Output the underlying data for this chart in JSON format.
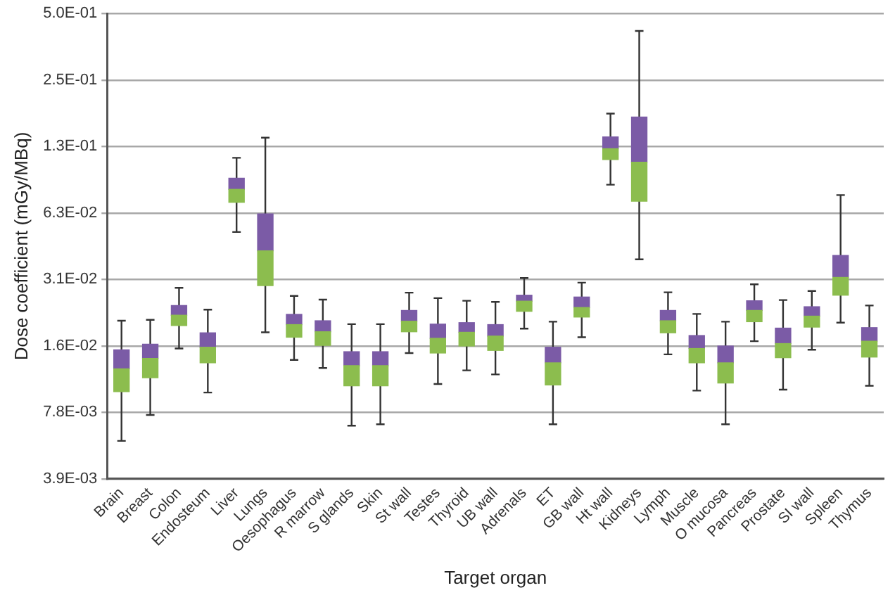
{
  "chart_data": {
    "type": "box",
    "xlabel": "Target organ",
    "ylabel": "Dose coefficient (mGy/MBq)",
    "categories": [
      "Brain",
      "Breast",
      "Colon",
      "Endosteum",
      "Liver",
      "Lungs",
      "Oesophagus",
      "R marrow",
      "S glands",
      "Skin",
      "St wall",
      "Testes",
      "Thyroid",
      "UB wall",
      "Adrenals",
      "ET",
      "GB wall",
      "Ht wall",
      "Kidneys",
      "Lymph",
      "Muscle",
      "O mucosa",
      "Pancreas",
      "Prostate",
      "SI wall",
      "Spleen",
      "Thymus"
    ],
    "colors": [
      [
        "#8cbd4e",
        "#7b5ba6"
      ],
      [
        "#8cbd4e",
        "#7b5ba6"
      ],
      [
        "#8cbd4e",
        "#7b5ba6"
      ],
      [
        "#8cbd4e",
        "#7b5ba6"
      ],
      [
        "#8cbd4e",
        "#7b5ba6"
      ],
      [
        "#8cbd4e",
        "#7b5ba6"
      ],
      [
        "#8cbd4e",
        "#7b5ba6"
      ],
      [
        "#8cbd4e",
        "#7b5ba6"
      ],
      [
        "#8cbd4e",
        "#7b5ba6"
      ],
      [
        "#8cbd4e",
        "#7b5ba6"
      ],
      [
        "#8cbd4e",
        "#7b5ba6"
      ],
      [
        "#8cbd4e",
        "#7b5ba6"
      ],
      [
        "#8cbd4e",
        "#7b5ba6"
      ],
      [
        "#8cbd4e",
        "#7b5ba6"
      ],
      [
        "#8cbd4e",
        "#7b5ba6"
      ],
      [
        "#8cbd4e",
        "#7b5ba6"
      ],
      [
        "#8cbd4e",
        "#7b5ba6"
      ],
      [
        "#8cbd4e",
        "#7b5ba6"
      ],
      [
        "#8cbd4e",
        "#7b5ba6"
      ],
      [
        "#8cbd4e",
        "#7b5ba6"
      ],
      [
        "#8cbd4e",
        "#7b5ba6"
      ],
      [
        "#8cbd4e",
        "#7b5ba6"
      ],
      [
        "#8cbd4e",
        "#7b5ba6"
      ],
      [
        "#8cbd4e",
        "#7b5ba6"
      ],
      [
        "#8cbd4e",
        "#7b5ba6"
      ],
      [
        "#8cbd4e",
        "#7b5ba6"
      ],
      [
        "#8cbd4e",
        "#7b5ba6"
      ]
    ],
    "boxes": [
      {
        "low": 0.0058,
        "q1": 0.0097,
        "median": 0.0123,
        "q3": 0.015,
        "high": 0.0203
      },
      {
        "low": 0.0076,
        "q1": 0.0112,
        "median": 0.0137,
        "q3": 0.0159,
        "high": 0.0205
      },
      {
        "low": 0.0152,
        "q1": 0.0193,
        "median": 0.0215,
        "q3": 0.0238,
        "high": 0.0286
      },
      {
        "low": 0.0096,
        "q1": 0.0131,
        "median": 0.0154,
        "q3": 0.0179,
        "high": 0.0228
      },
      {
        "low": 0.0512,
        "q1": 0.0698,
        "median": 0.0799,
        "q3": 0.0897,
        "high": 0.111
      },
      {
        "low": 0.018,
        "q1": 0.0293,
        "median": 0.0421,
        "q3": 0.0619,
        "high": 0.137
      },
      {
        "low": 0.0135,
        "q1": 0.0171,
        "median": 0.0195,
        "q3": 0.0217,
        "high": 0.0263
      },
      {
        "low": 0.0124,
        "q1": 0.0157,
        "median": 0.0181,
        "q3": 0.0203,
        "high": 0.0253
      },
      {
        "low": 0.0068,
        "q1": 0.0103,
        "median": 0.0127,
        "q3": 0.0147,
        "high": 0.0196
      },
      {
        "low": 0.0069,
        "q1": 0.0103,
        "median": 0.0127,
        "q3": 0.0147,
        "high": 0.0196
      },
      {
        "low": 0.0145,
        "q1": 0.0181,
        "median": 0.0202,
        "q3": 0.0226,
        "high": 0.0272
      },
      {
        "low": 0.0105,
        "q1": 0.0145,
        "median": 0.0169,
        "q3": 0.0196,
        "high": 0.0257
      },
      {
        "low": 0.0121,
        "q1": 0.0156,
        "median": 0.018,
        "q3": 0.0199,
        "high": 0.025
      },
      {
        "low": 0.0116,
        "q1": 0.0149,
        "median": 0.0173,
        "q3": 0.0195,
        "high": 0.0247
      },
      {
        "low": 0.0187,
        "q1": 0.0224,
        "median": 0.0249,
        "q3": 0.0265,
        "high": 0.0317
      },
      {
        "low": 0.0069,
        "q1": 0.0104,
        "median": 0.0131,
        "q3": 0.0154,
        "high": 0.0201
      },
      {
        "low": 0.0171,
        "q1": 0.0211,
        "median": 0.0233,
        "q3": 0.026,
        "high": 0.0302
      },
      {
        "low": 0.0839,
        "q1": 0.109,
        "median": 0.122,
        "q3": 0.138,
        "high": 0.176
      },
      {
        "low": 0.0385,
        "q1": 0.0706,
        "median": 0.106,
        "q3": 0.17,
        "high": 0.417
      },
      {
        "low": 0.0143,
        "q1": 0.0179,
        "median": 0.0203,
        "q3": 0.0226,
        "high": 0.0273
      },
      {
        "low": 0.0098,
        "q1": 0.0131,
        "median": 0.0152,
        "q3": 0.0174,
        "high": 0.0218
      },
      {
        "low": 0.0069,
        "q1": 0.0106,
        "median": 0.0131,
        "q3": 0.0156,
        "high": 0.0201
      },
      {
        "low": 0.0164,
        "q1": 0.0201,
        "median": 0.0226,
        "q3": 0.025,
        "high": 0.0297
      },
      {
        "low": 0.0099,
        "q1": 0.0138,
        "median": 0.016,
        "q3": 0.0188,
        "high": 0.0252
      },
      {
        "low": 0.015,
        "q1": 0.019,
        "median": 0.0213,
        "q3": 0.0235,
        "high": 0.0277
      },
      {
        "low": 0.0199,
        "q1": 0.0265,
        "median": 0.0319,
        "q3": 0.0401,
        "high": 0.0753
      },
      {
        "low": 0.0103,
        "q1": 0.0139,
        "median": 0.0164,
        "q3": 0.0189,
        "high": 0.0238
      }
    ],
    "log": true,
    "ylim": [
      0.00390625,
      0.5
    ],
    "yticks": [
      {
        "value": 0.5,
        "label": "5.0E-01"
      },
      {
        "value": 0.25,
        "label": "2.5E-01"
      },
      {
        "value": 0.125,
        "label": "1.3E-01"
      },
      {
        "value": 0.0625,
        "label": "6.3E-02"
      },
      {
        "value": 0.03125,
        "label": "3.1E-02"
      },
      {
        "value": 0.015625,
        "label": "1.6E-02"
      },
      {
        "value": 0.0078125,
        "label": "7.8E-03"
      },
      {
        "value": 0.00390625,
        "label": "3.9E-03"
      }
    ],
    "grid": "y"
  }
}
